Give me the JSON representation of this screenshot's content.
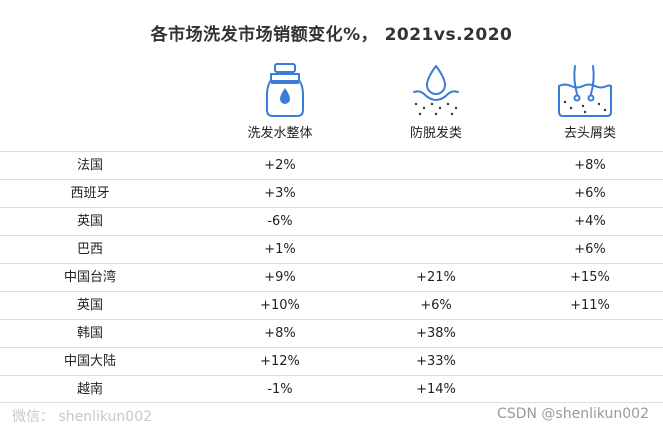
{
  "title": "各市场洗发市场销额变化%， 2021vs.2020",
  "columns": [
    "洗发水整体",
    "防脱发类",
    "去头屑类"
  ],
  "icons": [
    "shampoo-bottle-icon",
    "water-drop-scalp-icon",
    "hair-follicle-icon"
  ],
  "accent_color": "#3a7dd8",
  "chart_data": {
    "type": "table",
    "title": "各市场洗发市场销额变化%， 2021vs.2020",
    "columns": [
      "洗发水整体",
      "防脱发类",
      "去头屑类"
    ],
    "rows": [
      {
        "market": "法国",
        "values": [
          "+2%",
          "",
          "+8%"
        ]
      },
      {
        "market": "西班牙",
        "values": [
          "+3%",
          "",
          "+6%"
        ]
      },
      {
        "market": "英国",
        "values": [
          "-6%",
          "",
          "+4%"
        ]
      },
      {
        "market": "巴西",
        "values": [
          "+1%",
          "",
          "+6%"
        ]
      },
      {
        "market": "中国台湾",
        "values": [
          "+9%",
          "+21%",
          "+15%"
        ]
      },
      {
        "market": "英国",
        "values": [
          "+10%",
          "+6%",
          "+11%"
        ]
      },
      {
        "market": "韩国",
        "values": [
          "+8%",
          "+38%",
          ""
        ]
      },
      {
        "market": "中国大陆",
        "values": [
          "+12%",
          "+33%",
          ""
        ]
      },
      {
        "market": "越南",
        "values": [
          "-1%",
          "+14%",
          ""
        ]
      }
    ]
  },
  "watermark_left": "微信： shenlikun002",
  "watermark_right": "CSDN @shenlikun002"
}
